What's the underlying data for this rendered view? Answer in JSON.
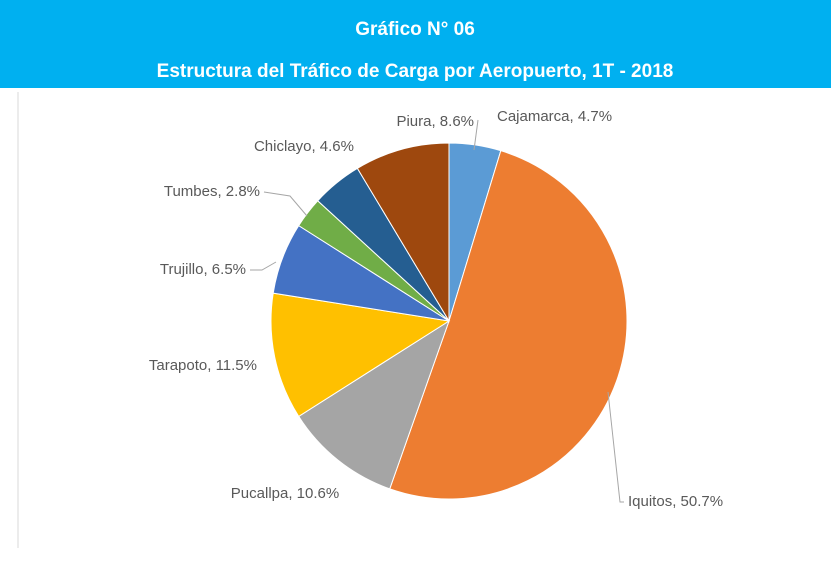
{
  "chart_data": {
    "type": "pie",
    "title": "Gráfico N° 06",
    "subtitle": "Estructura del Tráfico de Carga por Aeropuerto, 1T - 2018",
    "values": [
      4.7,
      50.7,
      10.6,
      11.5,
      6.5,
      2.8,
      4.6,
      8.6
    ],
    "value_labels": [
      "Cajamarca, 4.7%",
      "Iquitos, 50.7%",
      "Pucallpa, 10.6%",
      "Tarapoto, 11.5%",
      "Trujillo, 6.5%",
      "Tumbes, 2.8%",
      "Chiclayo, 4.6%",
      "Piura, 8.6%"
    ],
    "colors": [
      "#5b9bd5",
      "#ed7d31",
      "#a5a5a5",
      "#ffc000",
      "#4472c4",
      "#70ad47",
      "#255e91",
      "#9e480e"
    ]
  }
}
